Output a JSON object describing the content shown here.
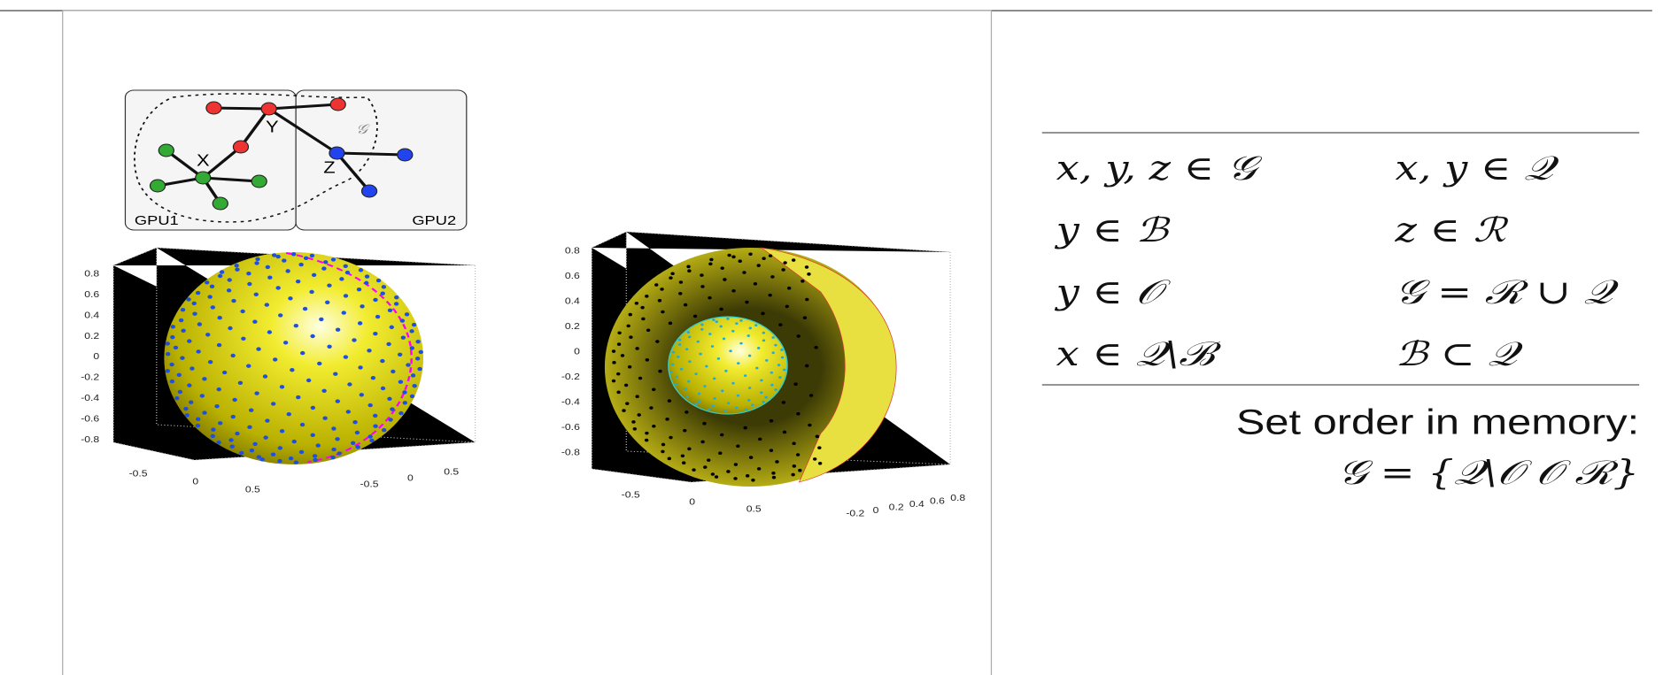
{
  "graph": {
    "nodes": {
      "x": "X",
      "y": "Y",
      "z": "Z",
      "set": "𝒢"
    },
    "gpu1": "GPU1",
    "gpu2": "GPU2"
  },
  "sphere_plot": {
    "z_ticks": [
      "0.8",
      "0.6",
      "0.4",
      "0.2",
      "0",
      "-0.2",
      "-0.4",
      "-0.6",
      "-0.8"
    ],
    "x_ticks": [
      "-0.5",
      "0",
      "0.5"
    ],
    "y_ticks": [
      "-0.5",
      "0",
      "0.5"
    ]
  },
  "shell_plot": {
    "z_ticks": [
      "0.8",
      "0.6",
      "0.4",
      "0.2",
      "0",
      "-0.2",
      "-0.4",
      "-0.6",
      "-0.8"
    ],
    "x_ticks": [
      "-0.5",
      "0",
      "0.5"
    ],
    "y_ticks": [
      "-0.2",
      "0",
      "0.2",
      "0.4",
      "0.6",
      "0.8"
    ]
  },
  "table": {
    "rows": [
      [
        "x, y, z ∈ 𝒢",
        "x, y ∈ 𝒬"
      ],
      [
        "y ∈ ℬ",
        "z ∈ ℛ"
      ],
      [
        "y ∈ 𝒪",
        "𝒢 = ℛ ∪ 𝒬"
      ],
      [
        "x ∈ 𝒬\\ℬ",
        "ℬ ⊂ 𝒬"
      ]
    ]
  },
  "caption": {
    "label": "Set order in memory:",
    "formula": "𝒢 = {𝒬\\𝒪  𝒪  ℛ}"
  }
}
